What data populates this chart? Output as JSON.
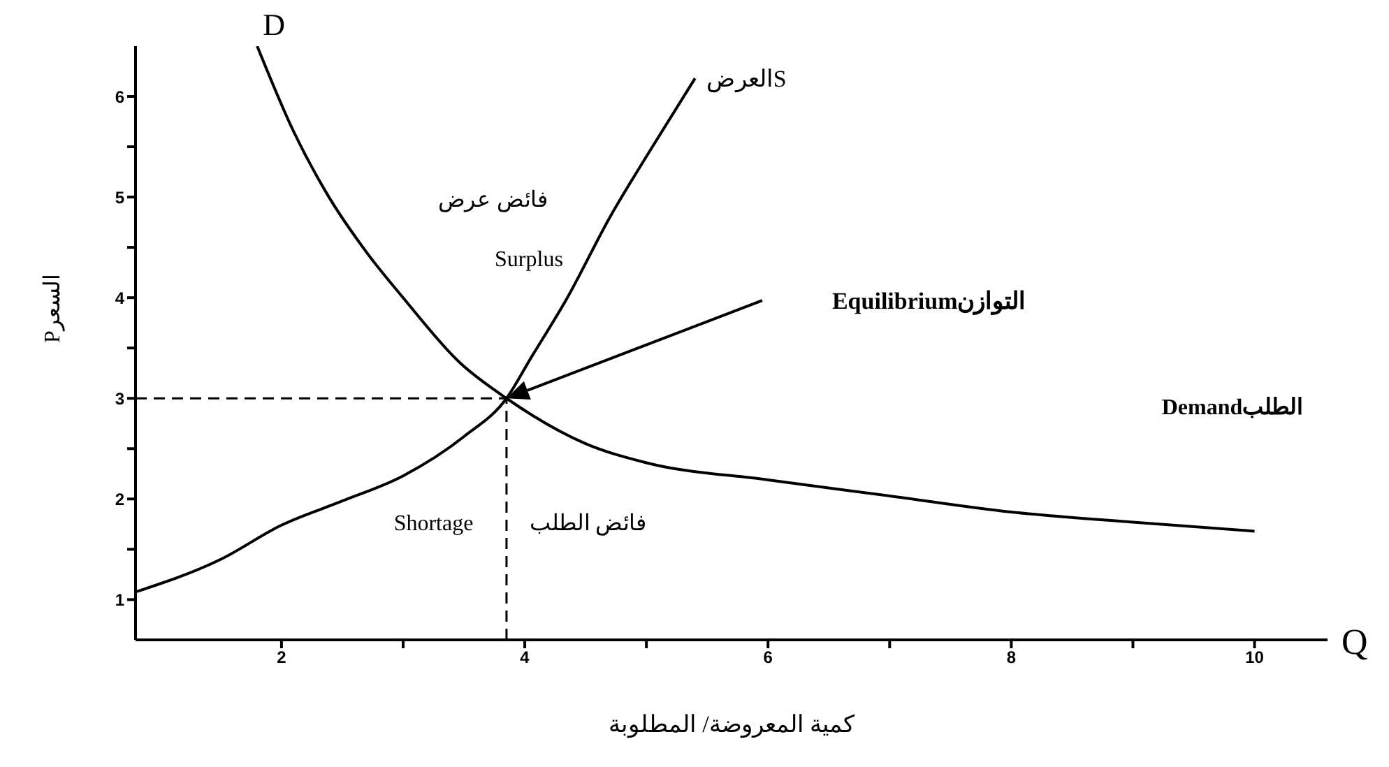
{
  "chart_data": {
    "type": "line",
    "xlabel": "كمية المعروضة/ المطلوبة",
    "ylabel": "Pالسعر",
    "xlim": [
      0.8,
      10.6
    ],
    "ylim": [
      0.6,
      6.5
    ],
    "xticks": [
      2,
      {
        "value": 3,
        "label": null
      },
      4,
      {
        "value": 5,
        "label": null
      },
      6,
      {
        "value": 7,
        "label": null
      },
      8,
      {
        "value": 9,
        "label": null
      },
      10
    ],
    "yticks": [
      1,
      {
        "value": 1.5,
        "label": null
      },
      2,
      {
        "value": 2.5,
        "label": null
      },
      3,
      {
        "value": 3.5,
        "label": null
      },
      4,
      {
        "value": 4.5,
        "label": null
      },
      5,
      {
        "value": 5.5,
        "label": null
      },
      6
    ],
    "series": [
      {
        "name": "D",
        "color": "#000000",
        "x": [
          1.8,
          2.1,
          2.39,
          2.7,
          3.0,
          3.47,
          3.85,
          4.5,
          5,
          6,
          7,
          8,
          9,
          10
        ],
        "values": [
          6.5,
          5.65,
          5.0,
          4.45,
          4.0,
          3.35,
          3.0,
          2.55,
          2.36,
          2.19,
          2.03,
          1.87,
          1.77,
          1.68
        ]
      },
      {
        "name": "العرضS",
        "color": "#000000",
        "x": [
          0.81,
          1.5,
          2,
          2.5,
          3,
          3.5,
          3.85,
          4.05,
          4.35,
          4.7,
          5.05,
          5.4
        ],
        "values": [
          1.08,
          1.4,
          1.74,
          1.98,
          2.23,
          2.62,
          3.0,
          3.4,
          4.0,
          4.8,
          5.5,
          6.18
        ]
      }
    ],
    "ref_lines": [
      {
        "axis": "y",
        "value": 3,
        "color": "#000000",
        "line_style": "dashed"
      },
      {
        "axis": "x",
        "value": 3.85,
        "color": "#000000",
        "line_style": "dashed"
      }
    ],
    "annotations": [
      "Equilibriumالتوازن",
      "Demandالطلب",
      "فائض عرض",
      "Surplus",
      "Shortage",
      "فائض الطلب",
      "Q"
    ],
    "grid": false,
    "legend": false,
    "marker": "none",
    "line_style": "solid"
  }
}
